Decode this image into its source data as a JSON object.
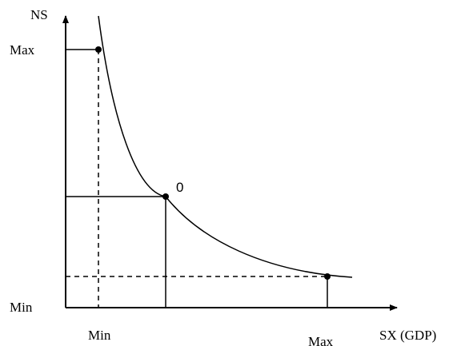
{
  "axes": {
    "y_label": "NS",
    "x_label": "SX (GDP)"
  },
  "y_ticks": {
    "max": "Max",
    "min": "Min"
  },
  "x_ticks": {
    "min": "Min",
    "max": "Max"
  },
  "points": {
    "center_label": "0"
  }
}
